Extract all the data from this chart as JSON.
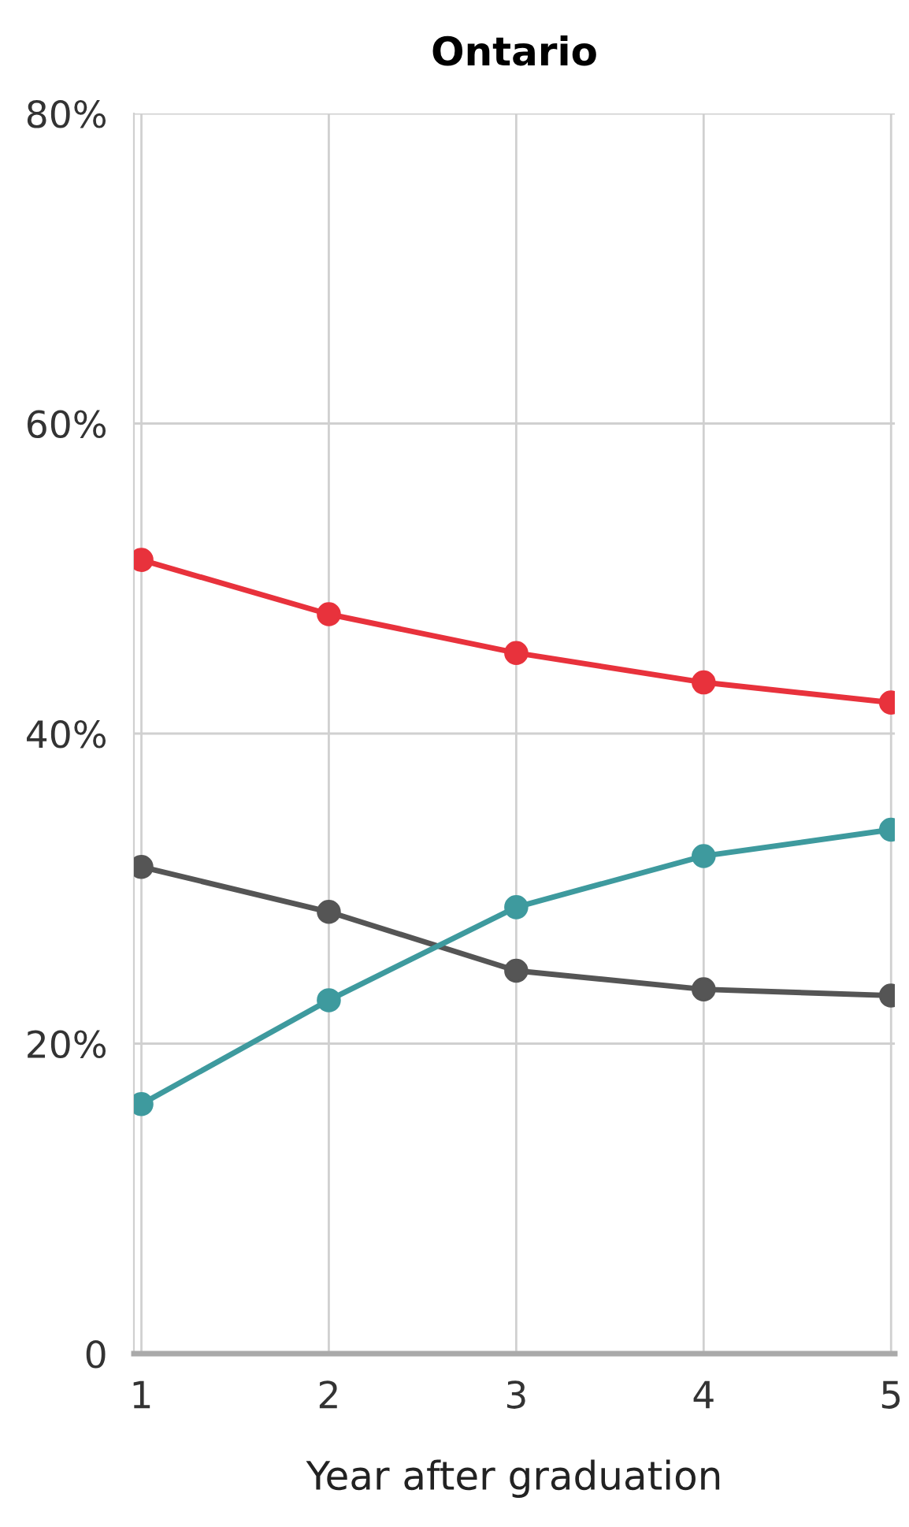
{
  "chart_data": {
    "type": "line",
    "title": "Ontario",
    "xlabel": "Year after graduation",
    "x": [
      1,
      2,
      3,
      4,
      5
    ],
    "series": [
      {
        "color": "#e8323c",
        "values": [
          51.2,
          47.7,
          45.2,
          43.3,
          42.0
        ]
      },
      {
        "color": "#555555",
        "values": [
          31.4,
          28.5,
          24.7,
          23.5,
          23.1
        ]
      },
      {
        "color": "#3e9a9e",
        "values": [
          16.1,
          22.8,
          28.8,
          32.1,
          33.8
        ]
      }
    ],
    "xlim": [
      0.96,
      5.02
    ],
    "xticks": [
      1,
      2,
      3,
      4,
      5
    ],
    "ylim": [
      0,
      80
    ],
    "yticks": [
      {
        "value": 0,
        "label": "0"
      },
      {
        "value": 20,
        "label": "20%"
      },
      {
        "value": 40,
        "label": "40%"
      },
      {
        "value": 60,
        "label": "60%"
      },
      {
        "value": 80,
        "label": "80%"
      }
    ],
    "grid": true,
    "marker": "circle",
    "line_style": "solid"
  }
}
